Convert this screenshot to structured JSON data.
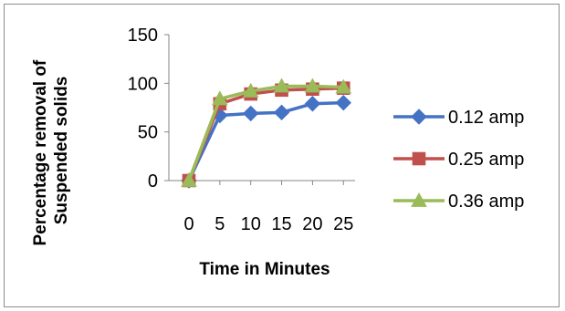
{
  "chart_data": {
    "type": "line",
    "title": "",
    "xlabel": "Time in Minutes",
    "ylabel_lines": [
      "Percentage removal of",
      "Suspended solids"
    ],
    "categories": [
      "0",
      "5",
      "10",
      "15",
      "20",
      "25"
    ],
    "ylim": [
      0,
      150
    ],
    "yticks": [
      0,
      50,
      100,
      150
    ],
    "grid": false,
    "legend_position": "right",
    "series": [
      {
        "name": "0.12 amp",
        "color": "#4472C4",
        "marker": "diamond",
        "values": [
          0,
          67,
          69,
          70,
          79,
          80
        ]
      },
      {
        "name": "0.25 amp",
        "color": "#C0504D",
        "marker": "square",
        "values": [
          0,
          79,
          89,
          93,
          94,
          95
        ]
      },
      {
        "name": "0.36 amp",
        "color": "#9BBB59",
        "marker": "triangle",
        "values": [
          0,
          84,
          92,
          97,
          97,
          96
        ]
      }
    ]
  }
}
